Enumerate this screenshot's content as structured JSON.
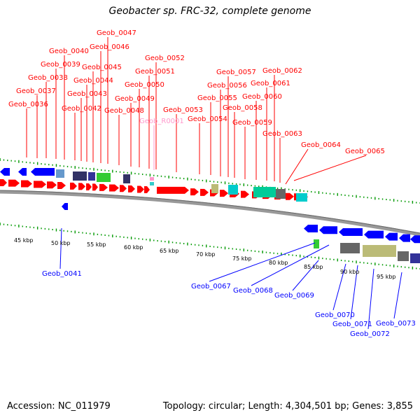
{
  "title": "Geobacter sp. FRC-32, complete genome",
  "accession": "Accession: NC_011979",
  "summary": "Topology: circular; Length: 4,304,501 bp; Genes: 3,855",
  "colors": {
    "forward_gene": "#ff0000",
    "reverse_gene": "#0000ff",
    "rna_gene": "#ff99cc",
    "backbone": "#999999"
  },
  "kbp_ticks": [
    "45 kbp",
    "50 kbp",
    "55 kbp",
    "60 kbp",
    "65 kbp",
    "70 kbp",
    "75 kbp",
    "80 kbp",
    "85 kbp",
    "90 kbp",
    "95 kbp"
  ],
  "genes_top": [
    "Geob_0036",
    "Geob_0037",
    "Geob_0038",
    "Geob_0039",
    "Geob_0040",
    "Geob_0042",
    "Geob_0043",
    "Geob_0044",
    "Geob_0045",
    "Geob_0046",
    "Geob_0047",
    "Geob_0048",
    "Geob_0049",
    "Geob_0050",
    "Geob_0051",
    "Geob_0052",
    "Geob_R0001",
    "Geob_0053",
    "Geob_0054",
    "Geob_0055",
    "Geob_0056",
    "Geob_0057",
    "Geob_0058",
    "Geob_0059",
    "Geob_0060",
    "Geob_0061",
    "Geob_0062",
    "Geob_0063",
    "Geob_0064",
    "Geob_0065"
  ],
  "genes_bottom": [
    "Geob_0041",
    "Geob_0067",
    "Geob_0068",
    "Geob_0069",
    "Geob_0070",
    "Geob_0071",
    "Geob_0072",
    "Geob_0073"
  ]
}
